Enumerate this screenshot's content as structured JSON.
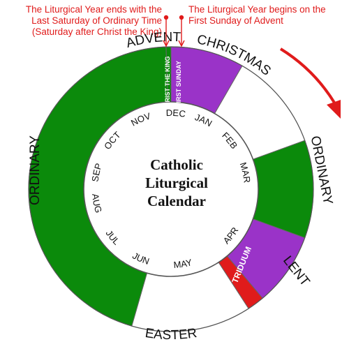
{
  "annotations": {
    "left": [
      "The Liturgical Year ends with the",
      "Last Saturday of Ordinary Time",
      "(Saturday after Christ the King)"
    ],
    "right": [
      "The Liturgical Year begins on the",
      "First Sunday of Advent"
    ]
  },
  "center_title": [
    "Catholic",
    "Liturgical",
    "Calendar"
  ],
  "colors": {
    "ordinary": "#0b8a0b",
    "advent_lent": "#9a33c8",
    "christmas_easter": "#ffffff",
    "triduum": "#e01b1b",
    "annotation": "#e01b1b",
    "outline": "#555555"
  },
  "seasons": [
    {
      "label": "ADVENT",
      "color": "#9a33c8"
    },
    {
      "label": "CHRISTMAS",
      "color": "#ffffff"
    },
    {
      "label": "ORDINARY",
      "color": "#0b8a0b"
    },
    {
      "label": "LENT",
      "color": "#9a33c8"
    },
    {
      "label": "TRIDUUM",
      "color": "#e01b1b"
    },
    {
      "label": "EASTER",
      "color": "#ffffff"
    },
    {
      "label": "ORDINARY",
      "color": "#0b8a0b"
    }
  ],
  "markers": {
    "christ_the_king": "CHRIST THE KING",
    "first_sunday": "FIRST SUNDAY"
  },
  "months": [
    "DEC",
    "JAN",
    "FEB",
    "MAR",
    "APR",
    "MAY",
    "JUN",
    "JUL",
    "AUG",
    "SEP",
    "OCT",
    "NOV"
  ]
}
